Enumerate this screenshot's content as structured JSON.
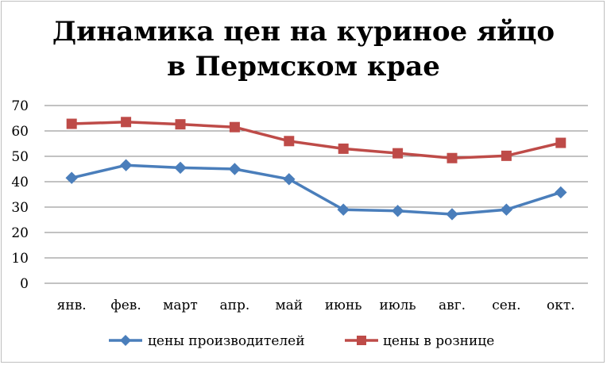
{
  "chart_data": {
    "type": "line",
    "title_line1": "Динамика цен на куриное яйцо",
    "title_line2": "в Пермском крае",
    "categories": [
      "янв.",
      "фев.",
      "март",
      "апр.",
      "май",
      "июнь",
      "июль",
      "авг.",
      "сен.",
      "окт."
    ],
    "series": [
      {
        "name": "цены производителей",
        "color": "#4a7ebb",
        "marker": "diamond",
        "values": [
          41.5,
          46.5,
          45.5,
          45,
          41,
          29,
          28.5,
          27.2,
          29,
          35.8
        ]
      },
      {
        "name": "цены в рознице",
        "color": "#be4b48",
        "marker": "square",
        "values": [
          62.8,
          63.5,
          62.6,
          61.5,
          56,
          53,
          51.2,
          49.3,
          50.2,
          55.3
        ]
      }
    ],
    "yticks": [
      "0",
      "10",
      "20",
      "30",
      "40",
      "50",
      "60",
      "70"
    ],
    "ylim": [
      0,
      70
    ],
    "grid": true,
    "legend_position": "bottom"
  }
}
